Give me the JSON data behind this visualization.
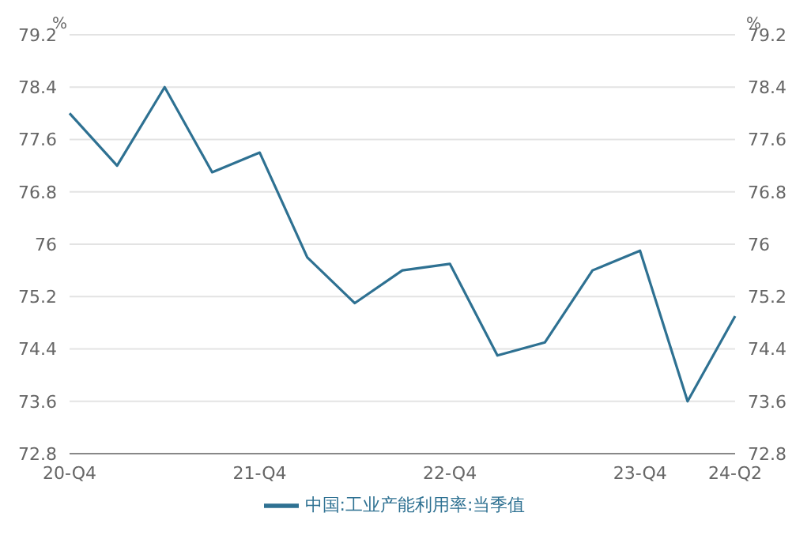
{
  "chart_data": {
    "type": "line",
    "ylabel": "%",
    "y2label": "%",
    "categories": [
      "20-Q4",
      null,
      null,
      null,
      "21-Q4",
      null,
      null,
      null,
      "22-Q4",
      null,
      null,
      null,
      "23-Q4",
      null,
      "24-Q2"
    ],
    "series": [
      {
        "name": "中国:工业产能利用率:当季值",
        "color": "#2e7192",
        "values": [
          78.0,
          77.2,
          78.4,
          77.1,
          77.4,
          75.8,
          75.1,
          75.6,
          75.7,
          74.3,
          74.5,
          75.6,
          75.9,
          73.6,
          74.9
        ]
      }
    ],
    "ylim": [
      72.8,
      79.2
    ],
    "yticks": [
      72.8,
      73.6,
      74.4,
      75.2,
      76,
      76.8,
      77.6,
      78.4,
      79.2
    ],
    "y2lim": [
      72.8,
      79.2
    ],
    "y2ticks": [
      72.8,
      73.6,
      74.4,
      75.2,
      76,
      76.8,
      77.6,
      78.4,
      79.2
    ],
    "grid": "y",
    "legend": "bottom",
    "marker": "none",
    "line_style": "solid"
  }
}
